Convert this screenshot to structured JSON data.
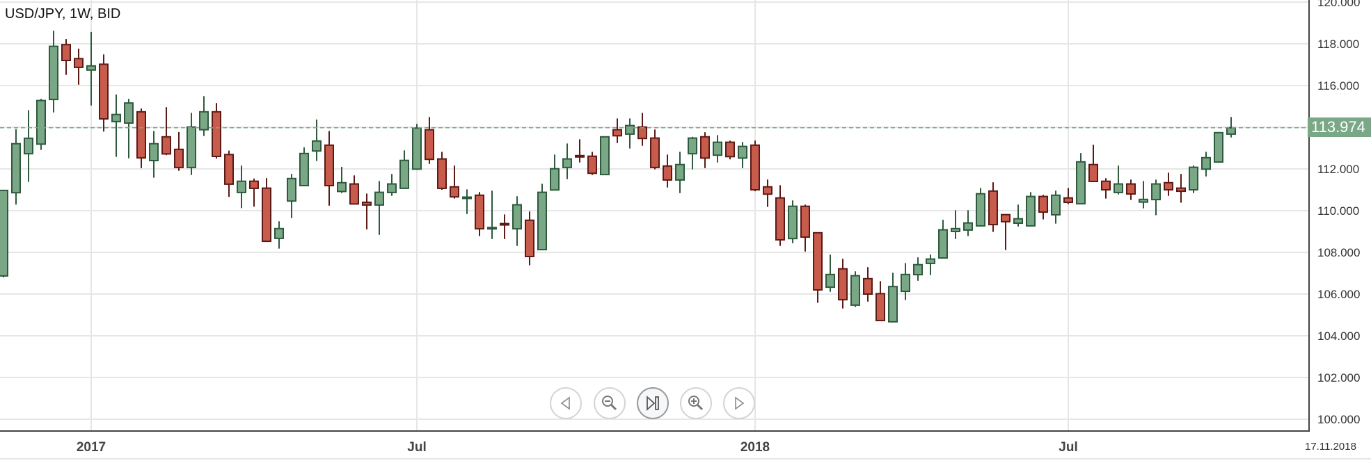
{
  "title": "USD/JPY, 1W, BID",
  "current_price_label": "113.974",
  "date_label": "17.11.2018",
  "nav_buttons": [
    {
      "name": "scroll-left-button",
      "icon": "triangle-left-icon"
    },
    {
      "name": "zoom-out-button",
      "icon": "zoom-out-icon"
    },
    {
      "name": "go-to-latest-button",
      "icon": "skip-to-end-icon"
    },
    {
      "name": "zoom-in-button",
      "icon": "zoom-in-icon"
    },
    {
      "name": "scroll-right-button",
      "icon": "triangle-right-icon"
    }
  ],
  "colors": {
    "up_fill": "#7aa886",
    "up_stroke": "#2d5a3d",
    "down_fill": "#c85c4c",
    "down_stroke": "#5c1a16",
    "grid": "#e6e6e6",
    "price_line": "#7aa886"
  },
  "chart_data": {
    "type": "candlestick",
    "title": "USD/JPY, 1W, BID",
    "ylim": [
      100,
      120
    ],
    "yticks": [
      "100.000",
      "102.000",
      "104.000",
      "106.000",
      "108.000",
      "110.000",
      "112.000",
      "114.000",
      "116.000",
      "118.000",
      "120.000"
    ],
    "yticks_visible": [
      "100.000",
      "102.000",
      "104.000",
      "106.000",
      "108.000",
      "110.000",
      "112.000",
      "116.000",
      "118.000",
      "120.000"
    ],
    "xticks": [
      {
        "label": "2017",
        "index": 7
      },
      {
        "label": "Jul",
        "index": 33
      },
      {
        "label": "2018",
        "index": 60
      },
      {
        "label": "Jul",
        "index": 85
      }
    ],
    "current_price": 113.974,
    "grid": true,
    "ohlc": [
      [
        106.87,
        111.0,
        106.8,
        110.97
      ],
      [
        110.86,
        113.91,
        110.29,
        113.21
      ],
      [
        112.73,
        114.82,
        111.38,
        113.47
      ],
      [
        113.19,
        115.36,
        112.91,
        115.28
      ],
      [
        115.33,
        118.63,
        114.71,
        117.88
      ],
      [
        117.96,
        118.23,
        116.51,
        117.2
      ],
      [
        117.29,
        117.77,
        116.04,
        116.87
      ],
      [
        116.74,
        118.57,
        115.04,
        116.94
      ],
      [
        117.02,
        117.49,
        113.79,
        114.4
      ],
      [
        114.27,
        115.57,
        112.58,
        114.61
      ],
      [
        114.2,
        115.36,
        112.51,
        115.16
      ],
      [
        114.74,
        114.9,
        112.04,
        112.53
      ],
      [
        112.4,
        113.82,
        111.58,
        113.21
      ],
      [
        113.54,
        114.96,
        112.66,
        112.72
      ],
      [
        112.94,
        113.77,
        111.91,
        112.07
      ],
      [
        112.07,
        114.69,
        111.71,
        114.01
      ],
      [
        113.88,
        115.49,
        113.58,
        114.74
      ],
      [
        114.74,
        115.16,
        112.5,
        112.6
      ],
      [
        112.69,
        112.88,
        110.66,
        111.27
      ],
      [
        110.87,
        112.16,
        110.12,
        111.41
      ],
      [
        111.41,
        111.54,
        110.19,
        111.07
      ],
      [
        111.08,
        111.56,
        108.5,
        108.53
      ],
      [
        108.67,
        109.49,
        108.18,
        109.14
      ],
      [
        110.46,
        111.76,
        109.64,
        111.54
      ],
      [
        111.2,
        113.03,
        111.2,
        112.74
      ],
      [
        112.86,
        114.37,
        112.38,
        113.34
      ],
      [
        113.14,
        113.82,
        110.24,
        111.2
      ],
      [
        110.92,
        112.1,
        110.84,
        111.34
      ],
      [
        111.28,
        111.69,
        110.32,
        110.32
      ],
      [
        110.4,
        110.82,
        109.1,
        110.27
      ],
      [
        110.27,
        111.42,
        108.84,
        110.88
      ],
      [
        110.87,
        111.76,
        110.71,
        111.28
      ],
      [
        111.07,
        112.89,
        111.07,
        112.41
      ],
      [
        111.99,
        114.16,
        111.99,
        113.96
      ],
      [
        113.88,
        114.49,
        112.24,
        112.46
      ],
      [
        112.48,
        112.82,
        111.0,
        111.07
      ],
      [
        111.14,
        112.16,
        110.58,
        110.66
      ],
      [
        110.64,
        111.02,
        109.84,
        110.65
      ],
      [
        110.74,
        110.89,
        108.78,
        109.13
      ],
      [
        109.18,
        110.96,
        108.64,
        109.19
      ],
      [
        109.38,
        109.82,
        108.64,
        109.37
      ],
      [
        109.13,
        110.69,
        108.31,
        110.28
      ],
      [
        109.54,
        109.96,
        107.38,
        107.8
      ],
      [
        108.13,
        111.29,
        108.13,
        110.88
      ],
      [
        110.99,
        112.69,
        110.99,
        112.01
      ],
      [
        112.07,
        113.22,
        111.51,
        112.48
      ],
      [
        112.64,
        113.42,
        112.31,
        112.63
      ],
      [
        112.61,
        112.82,
        111.71,
        111.79
      ],
      [
        111.73,
        113.54,
        111.7,
        113.54
      ],
      [
        113.88,
        114.42,
        113.24,
        113.59
      ],
      [
        113.67,
        114.42,
        112.98,
        114.08
      ],
      [
        114.01,
        114.69,
        113.11,
        113.46
      ],
      [
        113.48,
        113.89,
        111.98,
        112.07
      ],
      [
        112.14,
        112.69,
        111.11,
        111.47
      ],
      [
        111.47,
        112.82,
        110.84,
        112.21
      ],
      [
        112.73,
        113.54,
        111.98,
        113.48
      ],
      [
        113.54,
        113.76,
        112.04,
        112.52
      ],
      [
        112.66,
        113.62,
        112.31,
        113.28
      ],
      [
        113.28,
        113.36,
        112.46,
        112.59
      ],
      [
        112.52,
        113.29,
        112.04,
        113.08
      ],
      [
        113.14,
        113.36,
        110.93,
        111.0
      ],
      [
        111.14,
        111.49,
        110.18,
        110.79
      ],
      [
        110.61,
        111.22,
        108.31,
        108.6
      ],
      [
        108.66,
        110.49,
        108.44,
        110.21
      ],
      [
        110.21,
        110.29,
        108.04,
        108.73
      ],
      [
        108.94,
        108.94,
        105.58,
        106.2
      ],
      [
        106.33,
        107.89,
        106.11,
        106.94
      ],
      [
        107.21,
        107.69,
        105.31,
        105.73
      ],
      [
        105.47,
        107.09,
        105.38,
        106.88
      ],
      [
        106.74,
        107.29,
        105.64,
        106.0
      ],
      [
        106.02,
        106.62,
        104.73,
        104.73
      ],
      [
        104.67,
        107.02,
        104.67,
        106.36
      ],
      [
        106.13,
        107.49,
        105.71,
        106.94
      ],
      [
        106.93,
        107.76,
        106.64,
        107.41
      ],
      [
        107.47,
        107.89,
        106.91,
        107.68
      ],
      [
        107.73,
        109.56,
        107.73,
        109.08
      ],
      [
        109.0,
        110.02,
        108.64,
        109.14
      ],
      [
        109.07,
        110.02,
        108.78,
        109.41
      ],
      [
        109.27,
        111.09,
        109.27,
        110.81
      ],
      [
        110.94,
        111.36,
        108.98,
        109.33
      ],
      [
        109.81,
        109.81,
        108.11,
        109.47
      ],
      [
        109.4,
        110.29,
        109.24,
        109.61
      ],
      [
        109.27,
        110.89,
        109.27,
        110.68
      ],
      [
        110.68,
        110.76,
        109.58,
        109.93
      ],
      [
        109.8,
        110.96,
        109.38,
        110.74
      ],
      [
        110.61,
        111.09,
        110.31,
        110.4
      ],
      [
        110.33,
        112.76,
        110.33,
        112.34
      ],
      [
        112.21,
        113.16,
        111.4,
        111.4
      ],
      [
        111.41,
        111.56,
        110.58,
        111.0
      ],
      [
        110.87,
        112.16,
        110.78,
        111.28
      ],
      [
        111.28,
        111.49,
        110.51,
        110.8
      ],
      [
        110.41,
        111.42,
        110.11,
        110.54
      ],
      [
        110.53,
        111.49,
        109.78,
        111.28
      ],
      [
        111.34,
        111.82,
        110.71,
        111.0
      ],
      [
        111.08,
        111.76,
        110.38,
        110.93
      ],
      [
        111.0,
        112.16,
        110.84,
        112.08
      ],
      [
        111.99,
        112.82,
        111.64,
        112.54
      ],
      [
        112.33,
        113.74,
        112.33,
        113.74
      ],
      [
        113.67,
        114.49,
        113.51,
        113.974
      ]
    ]
  }
}
